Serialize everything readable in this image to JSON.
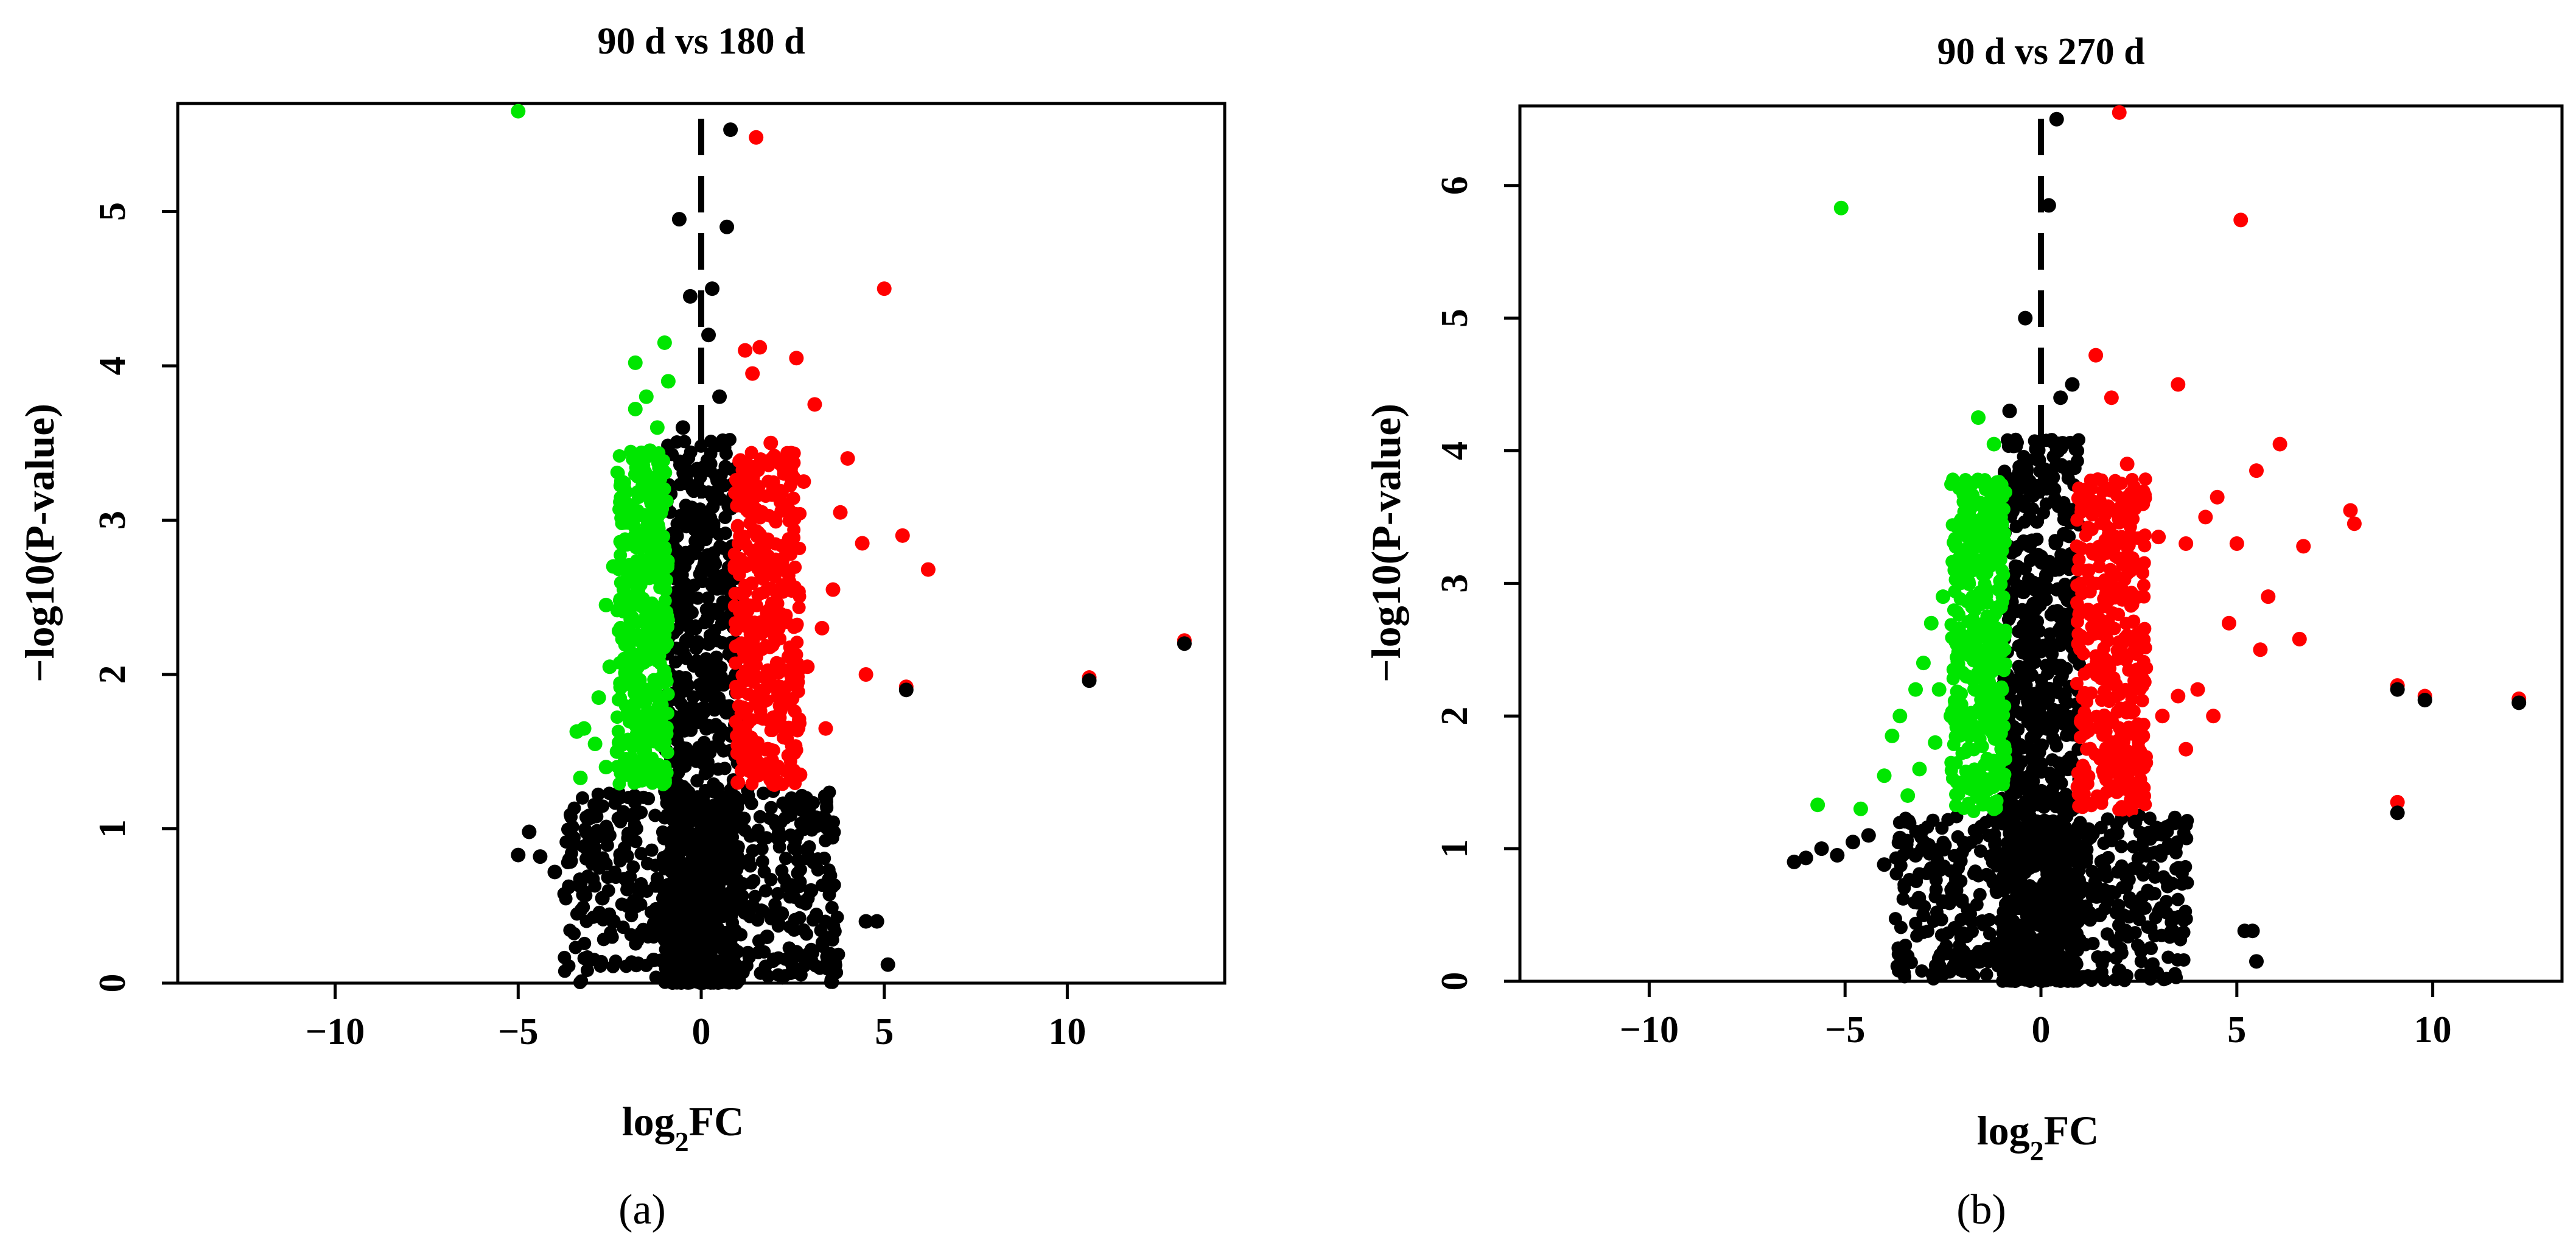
{
  "chart_data": [
    {
      "type": "scatter",
      "title": "90 d vs 180 d",
      "xlabel": "log2FC",
      "ylabel": "−log10(P-value)",
      "panel_label": "(a)",
      "xlim": [
        -14.3,
        14.3
      ],
      "ylim": [
        0,
        5.7
      ],
      "x_ticks": [
        -10,
        -5,
        0,
        5,
        10
      ],
      "x_tick_labels": [
        "−10",
        "−5",
        "0",
        "5",
        "10"
      ],
      "y_ticks": [
        0,
        1,
        2,
        3,
        4,
        5
      ],
      "y_tick_labels": [
        "0",
        "1",
        "2",
        "3",
        "4",
        "5"
      ],
      "threshold_line_x": 0,
      "grid": false,
      "legend": "none",
      "colors": {
        "down": "#00e600",
        "up": "#ff0000",
        "not_significant": "#000000",
        "threshold_line": "#000000"
      },
      "series": [
        {
          "color": "#00e600",
          "points": [
            [
              -5.0,
              5.65
            ],
            [
              -1.8,
              4.02
            ],
            [
              -1.8,
              3.72
            ],
            [
              -1.5,
              3.8
            ],
            [
              -1.0,
              4.15
            ],
            [
              -0.9,
              3.9
            ],
            [
              -2.6,
              2.45
            ],
            [
              -2.4,
              2.7
            ],
            [
              -2.5,
              2.05
            ],
            [
              -2.2,
              2.3
            ],
            [
              -2.8,
              1.85
            ],
            [
              -3.2,
              1.65
            ],
            [
              -3.4,
              1.63
            ],
            [
              -3.3,
              1.33
            ],
            [
              -2.9,
              1.55
            ],
            [
              -2.6,
              1.4
            ],
            [
              -2.3,
              1.5
            ],
            [
              -2.0,
              1.75
            ],
            [
              -1.9,
              2.6
            ],
            [
              -1.6,
              3.3
            ],
            [
              -1.4,
              3.45
            ],
            [
              -1.2,
              3.6
            ],
            [
              -1.1,
              2.9
            ],
            [
              -1.3,
              2.2
            ],
            [
              -1.5,
              1.9
            ],
            [
              -1.7,
              1.6
            ],
            [
              -1.2,
              1.4
            ],
            [
              -1.0,
              1.3
            ],
            [
              -1.8,
              2.9
            ],
            [
              -2.1,
              2.1
            ]
          ]
        },
        {
          "color": "#ff0000",
          "points": [
            [
              13.2,
              2.22
            ],
            [
              10.6,
              1.98
            ],
            [
              6.2,
              2.68
            ],
            [
              5.5,
              2.9
            ],
            [
              5.6,
              1.92
            ],
            [
              4.5,
              2.0
            ],
            [
              5.0,
              4.5
            ],
            [
              1.5,
              5.48
            ],
            [
              1.2,
              4.1
            ],
            [
              1.6,
              4.12
            ],
            [
              2.6,
              4.05
            ],
            [
              1.4,
              3.95
            ],
            [
              3.1,
              3.75
            ],
            [
              4.0,
              3.4
            ],
            [
              4.4,
              2.85
            ],
            [
              3.8,
              3.05
            ],
            [
              2.8,
              3.25
            ],
            [
              2.3,
              3.1
            ],
            [
              3.6,
              2.55
            ],
            [
              3.3,
              2.3
            ],
            [
              2.9,
              2.05
            ],
            [
              3.4,
              1.65
            ],
            [
              2.7,
              1.35
            ],
            [
              2.1,
              1.7
            ],
            [
              1.8,
              2.4
            ],
            [
              1.5,
              2.8
            ],
            [
              1.2,
              3.3
            ],
            [
              1.1,
              2.2
            ],
            [
              1.3,
              1.5
            ],
            [
              1.0,
              1.3
            ],
            [
              2.4,
              2.6
            ],
            [
              1.9,
              3.5
            ]
          ]
        },
        {
          "color": "#000000",
          "points": [
            [
              0.8,
              5.53
            ],
            [
              -0.6,
              4.95
            ],
            [
              0.7,
              4.9
            ],
            [
              0.3,
              4.5
            ],
            [
              -0.3,
              4.45
            ],
            [
              0.2,
              4.2
            ],
            [
              -0.5,
              3.6
            ],
            [
              0.5,
              3.8
            ],
            [
              0.0,
              3.0
            ],
            [
              -0.3,
              2.5
            ],
            [
              0.2,
              2.2
            ],
            [
              -0.1,
              1.5
            ],
            [
              0.1,
              1.0
            ],
            [
              0.0,
              0.5
            ],
            [
              -0.2,
              0.1
            ],
            [
              0.4,
              0.3
            ],
            [
              -5.0,
              0.83
            ],
            [
              -4.7,
              0.98
            ],
            [
              -4.4,
              0.82
            ],
            [
              -4.0,
              0.72
            ],
            [
              -3.6,
              0.8
            ],
            [
              -3.3,
              0.65
            ],
            [
              -3.0,
              0.9
            ],
            [
              -2.7,
              0.55
            ],
            [
              -2.4,
              0.4
            ],
            [
              -2.0,
              0.5
            ],
            [
              -1.7,
              0.3
            ],
            [
              -1.3,
              0.15
            ],
            [
              -1.0,
              0.6
            ],
            [
              -0.8,
              0.9
            ],
            [
              -0.5,
              1.1
            ],
            [
              0.6,
              1.2
            ],
            [
              1.0,
              0.8
            ],
            [
              1.4,
              0.5
            ],
            [
              1.8,
              0.3
            ],
            [
              2.2,
              0.45
            ],
            [
              2.6,
              0.2
            ],
            [
              3.0,
              0.6
            ],
            [
              2.8,
              1.0
            ],
            [
              2.4,
              1.15
            ],
            [
              4.5,
              0.4
            ],
            [
              4.8,
              0.4
            ],
            [
              5.1,
              0.12
            ],
            [
              13.2,
              2.2
            ],
            [
              10.6,
              1.96
            ],
            [
              5.6,
              1.9
            ]
          ]
        }
      ]
    },
    {
      "type": "scatter",
      "title": "90 d vs 270 d",
      "xlabel": "log2FC",
      "ylabel": "−log10(P-value)",
      "panel_label": "(b)",
      "xlim": [
        -13.3,
        13.3
      ],
      "ylim": [
        0,
        6.6
      ],
      "x_ticks": [
        -10,
        -5,
        0,
        5,
        10
      ],
      "x_tick_labels": [
        "−10",
        "−5",
        "0",
        "5",
        "10"
      ],
      "y_ticks": [
        0,
        1,
        2,
        3,
        4,
        5,
        6
      ],
      "y_tick_labels": [
        "0",
        "1",
        "2",
        "3",
        "4",
        "5",
        "6"
      ],
      "threshold_line_x": 0,
      "grid": false,
      "legend": "none",
      "colors": {
        "down": "#00e600",
        "up": "#ff0000",
        "not_significant": "#000000",
        "threshold_line": "#000000"
      },
      "series": [
        {
          "color": "#00e600",
          "points": [
            [
              -5.1,
              5.83
            ],
            [
              -1.6,
              4.25
            ],
            [
              -1.2,
              4.05
            ],
            [
              -1.3,
              3.62
            ],
            [
              -1.0,
              3.45
            ],
            [
              -5.7,
              1.33
            ],
            [
              -4.6,
              1.3
            ],
            [
              -4.0,
              1.55
            ],
            [
              -3.8,
              1.85
            ],
            [
              -3.6,
              2.0
            ],
            [
              -3.2,
              2.2
            ],
            [
              -3.0,
              2.4
            ],
            [
              -2.8,
              2.7
            ],
            [
              -2.5,
              2.9
            ],
            [
              -2.2,
              3.1
            ],
            [
              -2.0,
              3.2
            ],
            [
              -1.7,
              3.35
            ],
            [
              -1.4,
              3.55
            ],
            [
              -1.5,
              2.6
            ],
            [
              -1.9,
              2.3
            ],
            [
              -2.3,
              2.0
            ],
            [
              -2.7,
              1.8
            ],
            [
              -3.1,
              1.6
            ],
            [
              -3.4,
              1.4
            ],
            [
              -2.0,
              1.5
            ],
            [
              -1.2,
              1.3
            ],
            [
              -1.0,
              2.2
            ],
            [
              -1.3,
              1.9
            ],
            [
              -2.6,
              2.2
            ],
            [
              -1.8,
              2.6
            ]
          ]
        },
        {
          "color": "#ff0000",
          "points": [
            [
              2.0,
              6.55
            ],
            [
              5.1,
              5.74
            ],
            [
              3.5,
              4.5
            ],
            [
              1.8,
              4.4
            ],
            [
              1.4,
              4.72
            ],
            [
              6.1,
              4.05
            ],
            [
              5.5,
              3.85
            ],
            [
              4.5,
              3.65
            ],
            [
              7.9,
              3.55
            ],
            [
              8.0,
              3.45
            ],
            [
              6.7,
              3.28
            ],
            [
              5.0,
              3.3
            ],
            [
              4.2,
              3.5
            ],
            [
              3.7,
              3.3
            ],
            [
              3.0,
              3.35
            ],
            [
              2.6,
              3.6
            ],
            [
              2.2,
              3.9
            ],
            [
              5.8,
              2.9
            ],
            [
              6.6,
              2.58
            ],
            [
              5.6,
              2.5
            ],
            [
              4.8,
              2.7
            ],
            [
              4.0,
              2.2
            ],
            [
              3.5,
              2.15
            ],
            [
              3.1,
              2.0
            ],
            [
              2.6,
              1.85
            ],
            [
              2.2,
              1.6
            ],
            [
              1.8,
              1.45
            ],
            [
              9.1,
              2.23
            ],
            [
              9.8,
              2.15
            ],
            [
              12.2,
              2.13
            ],
            [
              9.1,
              1.35
            ],
            [
              3.7,
              1.75
            ],
            [
              1.2,
              2.8
            ],
            [
              1.1,
              1.6
            ],
            [
              1.5,
              3.2
            ],
            [
              4.4,
              2.0
            ]
          ]
        },
        {
          "color": "#000000",
          "points": [
            [
              0.4,
              6.5
            ],
            [
              0.2,
              5.85
            ],
            [
              -0.4,
              5.0
            ],
            [
              0.5,
              4.4
            ],
            [
              0.8,
              4.5
            ],
            [
              -0.8,
              4.3
            ],
            [
              0.3,
              3.8
            ],
            [
              0.0,
              3.2
            ],
            [
              -0.3,
              2.8
            ],
            [
              0.2,
              2.2
            ],
            [
              -0.1,
              1.6
            ],
            [
              0.1,
              1.0
            ],
            [
              0.0,
              0.5
            ],
            [
              -0.2,
              0.1
            ],
            [
              0.3,
              0.3
            ],
            [
              -6.3,
              0.9
            ],
            [
              -6.0,
              0.93
            ],
            [
              -5.6,
              1.0
            ],
            [
              -5.2,
              0.95
            ],
            [
              -4.8,
              1.05
            ],
            [
              -4.4,
              1.1
            ],
            [
              -4.0,
              0.88
            ],
            [
              -3.6,
              1.08
            ],
            [
              -3.2,
              0.95
            ],
            [
              -2.8,
              0.85
            ],
            [
              -2.5,
              0.6
            ],
            [
              -2.2,
              0.4
            ],
            [
              -1.9,
              0.35
            ],
            [
              -1.5,
              0.45
            ],
            [
              -1.2,
              0.2
            ],
            [
              -1.0,
              0.75
            ],
            [
              -0.7,
              1.1
            ],
            [
              0.7,
              1.1
            ],
            [
              1.1,
              0.7
            ],
            [
              1.5,
              0.5
            ],
            [
              1.9,
              0.3
            ],
            [
              2.3,
              0.6
            ],
            [
              2.7,
              0.95
            ],
            [
              3.0,
              1.15
            ],
            [
              2.4,
              1.2
            ],
            [
              5.2,
              0.38
            ],
            [
              5.4,
              0.38
            ],
            [
              5.5,
              0.15
            ],
            [
              2.0,
              0.08
            ],
            [
              9.1,
              1.27
            ],
            [
              9.1,
              2.2
            ],
            [
              9.8,
              2.12
            ],
            [
              12.2,
              2.1
            ]
          ]
        }
      ]
    }
  ]
}
